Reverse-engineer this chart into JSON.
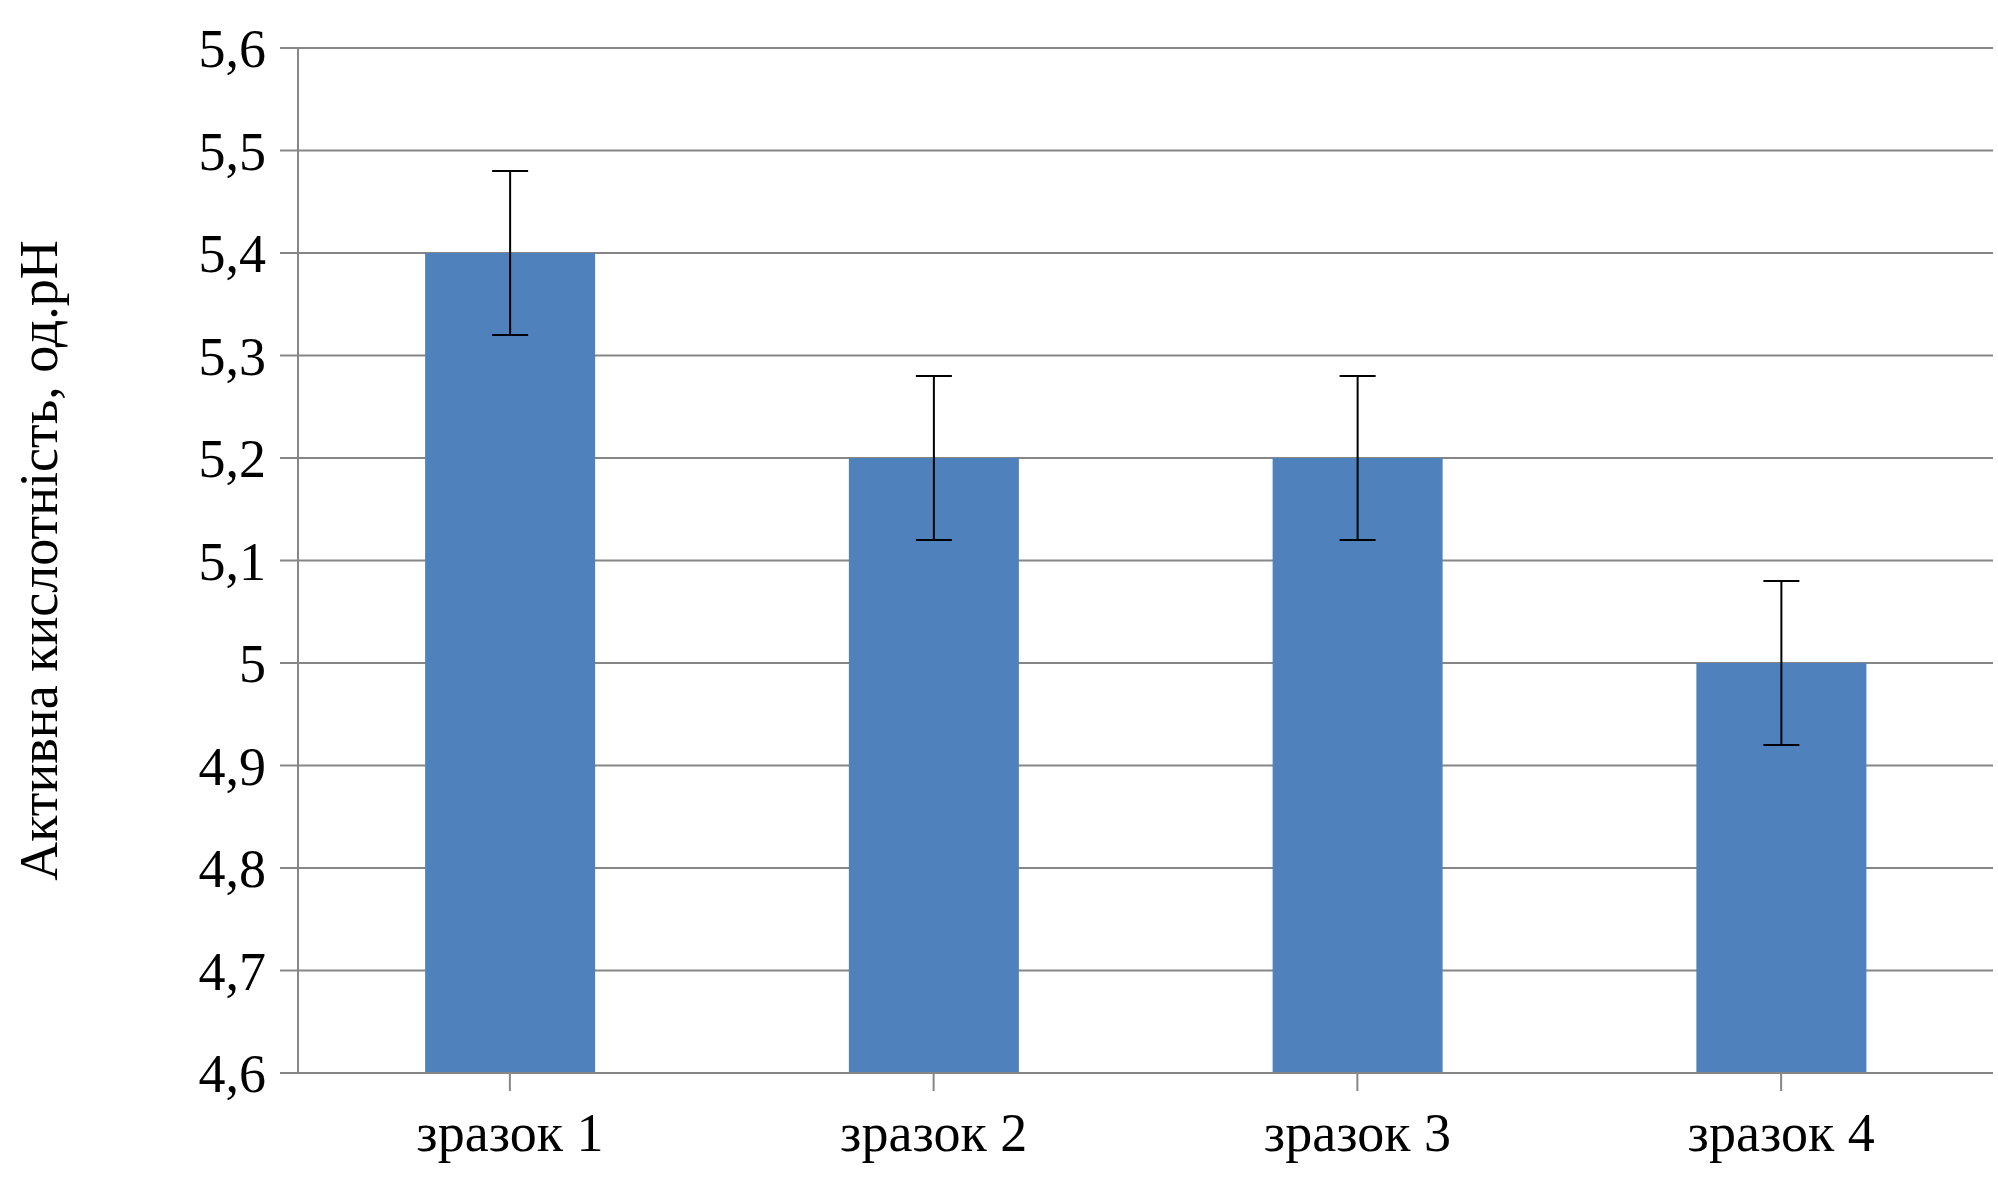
{
  "chart_data": {
    "type": "bar",
    "ylabel": "Активна кислотність, од.pH",
    "categories": [
      "зразок 1",
      "зразок 2",
      "зразок 3",
      "зразок 4"
    ],
    "values": [
      5.4,
      5.2,
      5.2,
      5.0
    ],
    "errors": [
      0.08,
      0.08,
      0.08,
      0.08
    ],
    "color": "#4f81bd",
    "ylim": [
      4.6,
      5.6
    ],
    "yticks": [
      {
        "value": 4.6,
        "label": "4,6"
      },
      {
        "value": 4.7,
        "label": "4,7"
      },
      {
        "value": 4.8,
        "label": "4,8"
      },
      {
        "value": 4.9,
        "label": "4,9"
      },
      5,
      {
        "value": 5.1,
        "label": "5,1"
      },
      {
        "value": 5.2,
        "label": "5,2"
      },
      {
        "value": 5.3,
        "label": "5,3"
      },
      {
        "value": 5.4,
        "label": "5,4"
      },
      {
        "value": 5.5,
        "label": "5,5"
      },
      {
        "value": 5.6,
        "label": "5,6"
      }
    ],
    "grid": "y"
  }
}
